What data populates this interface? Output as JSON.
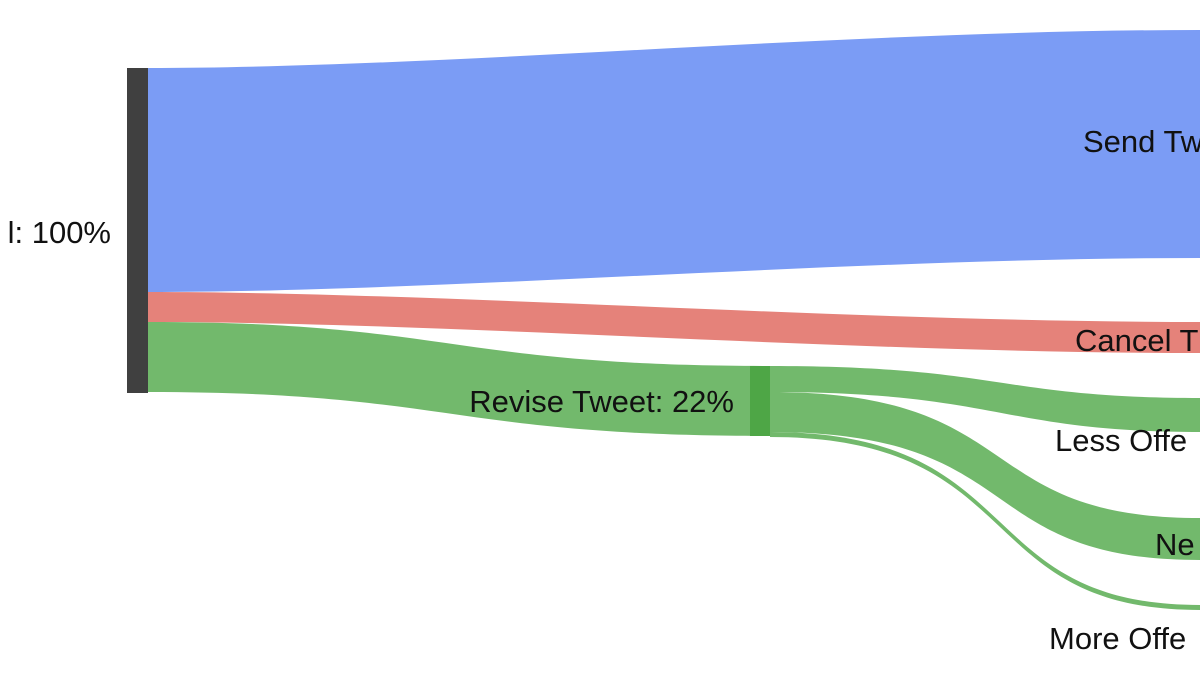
{
  "nodes": {
    "source": {
      "label": "l: 100%",
      "color": "#404040"
    },
    "send": {
      "label": "Send Tw"
    },
    "cancel": {
      "label": "Cancel T"
    },
    "revise": {
      "label": "Revise Tweet: 22%",
      "color": "#4ea646"
    },
    "less_offensive": {
      "label": "Less Offe"
    },
    "neutral": {
      "label": "Ne"
    },
    "more_offensive": {
      "label": "More Offe"
    }
  },
  "flows": {
    "send": {
      "color": "#7b9cf5"
    },
    "cancel": {
      "color": "#e5827a"
    },
    "revise": {
      "color": "#72b96c"
    }
  },
  "chart_data": {
    "type": "sankey",
    "nodes": [
      "l: 100%",
      "Send Tw",
      "Cancel T",
      "Revise Tweet: 22%",
      "Less Offe",
      "Ne",
      "More Offe"
    ],
    "links": [
      {
        "source": "l: 100%",
        "target": "Send Tw",
        "value": 69
      },
      {
        "source": "l: 100%",
        "target": "Cancel T",
        "value": 9
      },
      {
        "source": "l: 100%",
        "target": "Revise Tweet: 22%",
        "value": 22
      },
      {
        "source": "Revise Tweet: 22%",
        "target": "Less Offe",
        "value": 7
      },
      {
        "source": "Revise Tweet: 22%",
        "target": "Ne",
        "value": 14.5
      },
      {
        "source": "Revise Tweet: 22%",
        "target": "More Offe",
        "value": 0.5
      }
    ]
  }
}
